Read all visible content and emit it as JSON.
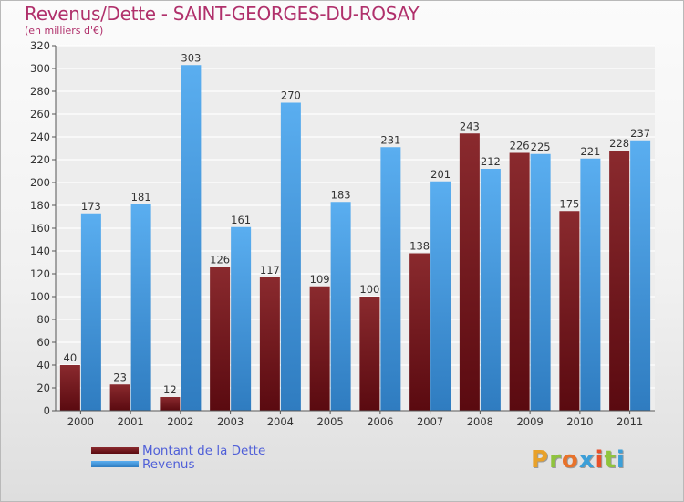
{
  "chart_data": {
    "type": "bar",
    "title": "Revenus/Dette - SAINT-GEORGES-DU-ROSAY",
    "subtitle": "(en milliers d'€)",
    "categories": [
      "2000",
      "2001",
      "2002",
      "2003",
      "2004",
      "2005",
      "2006",
      "2007",
      "2008",
      "2009",
      "2010",
      "2011"
    ],
    "series": [
      {
        "name": "Montant de la Dette",
        "color": "#7a1a1f",
        "values": [
          40,
          23,
          12,
          126,
          117,
          109,
          100,
          138,
          243,
          226,
          175,
          228
        ]
      },
      {
        "name": "Revenus",
        "color": "#4a9fe0",
        "values": [
          173,
          181,
          303,
          161,
          270,
          183,
          231,
          201,
          212,
          225,
          221,
          237
        ]
      }
    ],
    "ylim": [
      0,
      320
    ],
    "yticks": [
      0,
      20,
      40,
      60,
      80,
      100,
      120,
      140,
      160,
      180,
      200,
      220,
      240,
      260,
      280,
      300,
      320
    ],
    "grid": true,
    "legend_position": "bottom-left"
  },
  "branding": {
    "logo_letters": [
      "P",
      "r",
      "o",
      "x",
      "i",
      "t",
      "i"
    ],
    "logo_colors": [
      "#e8a12a",
      "#8fc43c",
      "#e8722a",
      "#3c9fd8",
      "#e8502a",
      "#8fc43c",
      "#3c9fd8"
    ]
  }
}
